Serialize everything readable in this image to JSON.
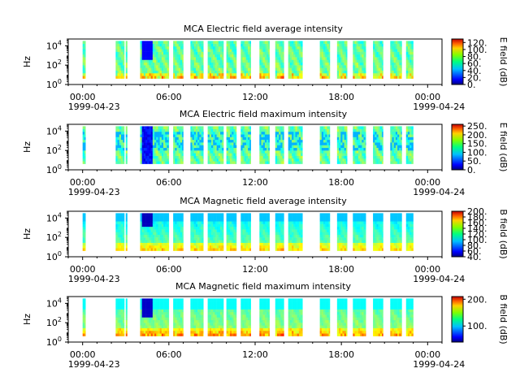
{
  "chart_data": [
    {
      "type": "heatmap",
      "title": "MCA  Electric field average intensity",
      "ylabel": "Hz",
      "y_ticks": [
        {
          "exp": 0
        },
        {
          "exp": 2
        },
        {
          "exp": 4
        }
      ],
      "x_ticks": [
        "00:00",
        "06:00",
        "12:00",
        "18:00",
        "00:00"
      ],
      "x_dates": [
        "1999-04-23",
        "1999-04-24"
      ],
      "xlim_hours": [
        -1,
        25
      ],
      "colorbar": {
        "label": "E field (dB)",
        "ticks": [
          "0.",
          "20.",
          "40.",
          "60.",
          "80.",
          "100.",
          "120."
        ],
        "range": [
          0,
          130
        ]
      },
      "data_intervals_hours": [
        [
          0.0,
          0.2
        ],
        [
          2.3,
          2.9
        ],
        [
          3.0,
          3.1
        ],
        [
          4.0,
          6.0
        ],
        [
          6.3,
          7.0
        ],
        [
          7.5,
          8.4
        ],
        [
          8.7,
          9.8
        ],
        [
          10.0,
          10.7
        ],
        [
          11.0,
          11.7
        ],
        [
          12.3,
          13.0
        ],
        [
          13.4,
          14.0
        ],
        [
          14.3,
          15.3
        ],
        [
          16.5,
          17.2
        ],
        [
          17.7,
          18.4
        ],
        [
          18.8,
          19.7
        ],
        [
          20.2,
          20.9
        ],
        [
          21.4,
          22.2
        ],
        [
          22.5,
          23.0
        ]
      ]
    },
    {
      "type": "heatmap",
      "title": "MCA  Electric field maximum intensity",
      "ylabel": "Hz",
      "y_ticks": [
        {
          "exp": 0
        },
        {
          "exp": 2
        },
        {
          "exp": 4
        }
      ],
      "x_ticks": [
        "00:00",
        "06:00",
        "12:00",
        "18:00",
        "00:00"
      ],
      "x_dates": [
        "1999-04-23",
        "1999-04-24"
      ],
      "xlim_hours": [
        -1,
        25
      ],
      "colorbar": {
        "label": "E field (dB)",
        "ticks": [
          "0.",
          "50.",
          "100.",
          "150.",
          "200.",
          "250."
        ],
        "range": [
          0,
          260
        ]
      },
      "data_intervals_hours": [
        [
          0.0,
          0.2
        ],
        [
          2.3,
          2.9
        ],
        [
          3.0,
          3.1
        ],
        [
          4.0,
          6.0
        ],
        [
          6.3,
          7.0
        ],
        [
          7.5,
          8.4
        ],
        [
          8.7,
          9.8
        ],
        [
          10.0,
          10.7
        ],
        [
          11.0,
          11.7
        ],
        [
          12.3,
          13.0
        ],
        [
          13.4,
          14.0
        ],
        [
          14.3,
          15.3
        ],
        [
          16.5,
          17.2
        ],
        [
          17.7,
          18.4
        ],
        [
          18.8,
          19.7
        ],
        [
          20.2,
          20.9
        ],
        [
          21.4,
          22.2
        ],
        [
          22.5,
          23.0
        ]
      ]
    },
    {
      "type": "heatmap",
      "title": "MCA  Magnetic field average intensity",
      "ylabel": "Hz",
      "y_ticks": [
        {
          "exp": 0
        },
        {
          "exp": 2
        },
        {
          "exp": 4
        }
      ],
      "x_ticks": [
        "00:00",
        "06:00",
        "12:00",
        "18:00",
        "00:00"
      ],
      "x_dates": [
        "1999-04-23",
        "1999-04-24"
      ],
      "xlim_hours": [
        -1,
        25
      ],
      "colorbar": {
        "label": "B field (dB)",
        "ticks": [
          "40.",
          "60.",
          "80.",
          "100.",
          "120.",
          "140.",
          "160.",
          "180.",
          "200."
        ],
        "range": [
          40,
          200
        ]
      },
      "data_intervals_hours": [
        [
          0.0,
          0.2
        ],
        [
          2.3,
          2.9
        ],
        [
          3.0,
          3.1
        ],
        [
          4.0,
          6.0
        ],
        [
          6.3,
          7.0
        ],
        [
          7.5,
          8.4
        ],
        [
          8.7,
          9.8
        ],
        [
          10.0,
          10.7
        ],
        [
          11.0,
          11.7
        ],
        [
          12.3,
          13.0
        ],
        [
          13.4,
          14.0
        ],
        [
          14.3,
          15.3
        ],
        [
          16.5,
          17.2
        ],
        [
          17.7,
          18.4
        ],
        [
          18.8,
          19.7
        ],
        [
          20.2,
          20.9
        ],
        [
          21.4,
          22.2
        ],
        [
          22.5,
          23.0
        ]
      ]
    },
    {
      "type": "heatmap",
      "title": "MCA  Magnetic field maximum intensity",
      "ylabel": "Hz",
      "y_ticks": [
        {
          "exp": 0
        },
        {
          "exp": 2
        },
        {
          "exp": 4
        }
      ],
      "x_ticks": [
        "00:00",
        "06:00",
        "12:00",
        "18:00",
        "00:00"
      ],
      "x_dates": [
        "1999-04-23",
        "1999-04-24"
      ],
      "xlim_hours": [
        -1,
        25
      ],
      "colorbar": {
        "label": "B field (dB)",
        "ticks": [
          "100.",
          "200."
        ],
        "range": [
          40,
          210
        ]
      },
      "data_intervals_hours": [
        [
          0.0,
          0.2
        ],
        [
          2.3,
          2.9
        ],
        [
          3.0,
          3.1
        ],
        [
          4.0,
          6.0
        ],
        [
          6.3,
          7.0
        ],
        [
          7.5,
          8.4
        ],
        [
          8.7,
          9.8
        ],
        [
          10.0,
          10.7
        ],
        [
          11.0,
          11.7
        ],
        [
          12.3,
          13.0
        ],
        [
          13.4,
          14.0
        ],
        [
          14.3,
          15.3
        ],
        [
          16.5,
          17.2
        ],
        [
          17.7,
          18.4
        ],
        [
          18.8,
          19.7
        ],
        [
          20.2,
          20.9
        ],
        [
          21.4,
          22.2
        ],
        [
          22.5,
          23.0
        ]
      ]
    }
  ]
}
